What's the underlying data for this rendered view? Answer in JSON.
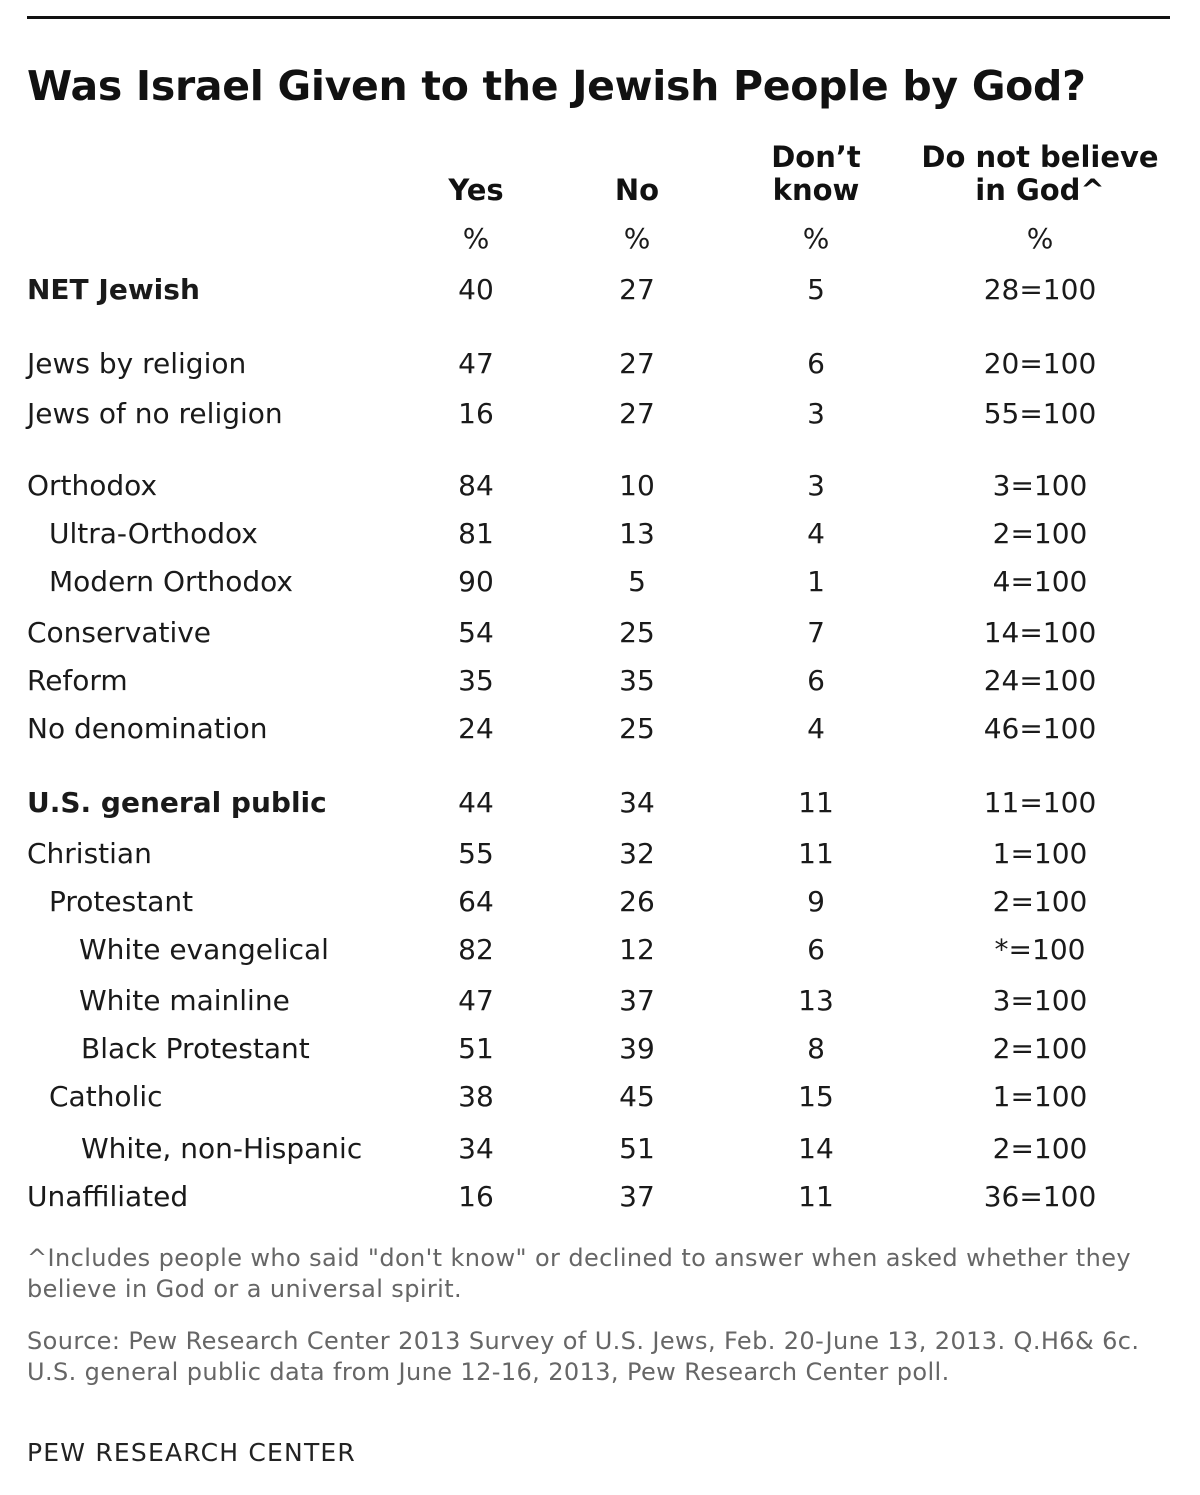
{
  "chart_data": {
    "type": "table",
    "title": "Was Israel Given to the Jewish People by God?",
    "columns": [
      {
        "key": "yes",
        "label_lines": [
          "Yes"
        ],
        "unit": "%"
      },
      {
        "key": "no",
        "label_lines": [
          "No"
        ],
        "unit": "%"
      },
      {
        "key": "dont_know",
        "label_lines": [
          "Don’t",
          "know"
        ],
        "unit": "%"
      },
      {
        "key": "do_not_believe",
        "label_lines": [
          "Do not believe",
          "in God^"
        ],
        "unit": "%"
      }
    ],
    "rows": [
      {
        "label": "NET Jewish",
        "bold": true,
        "yes": "40",
        "no": "27",
        "dont_know": "5",
        "do_not_believe": "28=100"
      },
      {
        "label": "Jews by religion",
        "yes": "47",
        "no": "27",
        "dont_know": "6",
        "do_not_believe": "20=100"
      },
      {
        "label": "Jews of no religion",
        "yes": "16",
        "no": "27",
        "dont_know": "3",
        "do_not_believe": "55=100"
      },
      {
        "label": "Orthodox",
        "yes": "84",
        "no": "10",
        "dont_know": "3",
        "do_not_believe": "3=100"
      },
      {
        "label": "Ultra-Orthodox",
        "yes": "81",
        "no": "13",
        "dont_know": "4",
        "do_not_believe": "2=100"
      },
      {
        "label": "Modern Orthodox",
        "yes": "90",
        "no": "5",
        "dont_know": "1",
        "do_not_believe": "4=100"
      },
      {
        "label": "Conservative",
        "yes": "54",
        "no": "25",
        "dont_know": "7",
        "do_not_believe": "14=100"
      },
      {
        "label": "Reform",
        "yes": "35",
        "no": "35",
        "dont_know": "6",
        "do_not_believe": "24=100"
      },
      {
        "label": "No denomination",
        "yes": "24",
        "no": "25",
        "dont_know": "4",
        "do_not_believe": "46=100"
      },
      {
        "label": "U.S. general public",
        "bold": true,
        "yes": "44",
        "no": "34",
        "dont_know": "11",
        "do_not_believe": "11=100"
      },
      {
        "label": "Christian",
        "yes": "55",
        "no": "32",
        "dont_know": "11",
        "do_not_believe": "1=100"
      },
      {
        "label": "Protestant",
        "yes": "64",
        "no": "26",
        "dont_know": "9",
        "do_not_believe": "2=100"
      },
      {
        "label": "White evangelical",
        "yes": "82",
        "no": "12",
        "dont_know": "6",
        "do_not_believe": "*=100"
      },
      {
        "label": "White mainline",
        "yes": "47",
        "no": "37",
        "dont_know": "13",
        "do_not_believe": "3=100"
      },
      {
        "label": "Black Protestant",
        "yes": "51",
        "no": "39",
        "dont_know": "8",
        "do_not_believe": "2=100"
      },
      {
        "label": "Catholic",
        "yes": "38",
        "no": "45",
        "dont_know": "15",
        "do_not_believe": "1=100"
      },
      {
        "label": "White, non-Hispanic",
        "yes": "34",
        "no": "51",
        "dont_know": "14",
        "do_not_believe": "2=100"
      },
      {
        "label": "Unaffiliated",
        "yes": "16",
        "no": "37",
        "dont_know": "11",
        "do_not_believe": "36=100"
      }
    ],
    "footnote": "^Includes people who said \"don't know\" or declined to answer when asked whether they believe in God or a universal spirit.",
    "source": "Source: Pew Research Center 2013 Survey of U.S. Jews, Feb. 20-June 13, 2013. Q.H6& 6c. U.S. general public data from June 12-16, 2013, Pew Research Center poll.",
    "credit": "PEW RESEARCH CENTER"
  }
}
